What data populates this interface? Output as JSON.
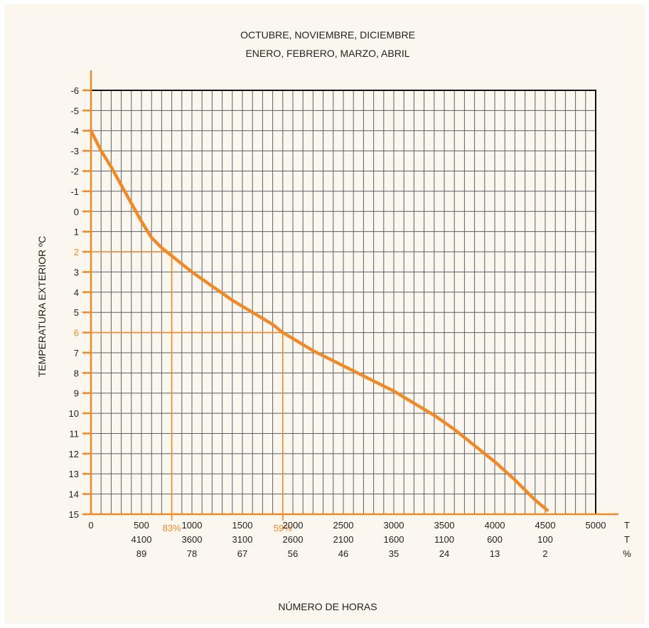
{
  "chart_data": {
    "type": "line",
    "title_line1": "OCTUBRE, NOVIEMBRE, DICIEMBRE",
    "title_line2": "ENERO, FEBRERO, MARZO, ABRIL",
    "xlabel": "NÚMERO DE HORAS",
    "ylabel": "TEMPERATURA EXTERIOR ºC",
    "xlim": [
      0,
      5000
    ],
    "ylim": [
      -6,
      15
    ],
    "y_inverted": true,
    "grid": true,
    "x_ticks": [
      {
        "h": "0",
        "t": "",
        "p": ""
      },
      {
        "h": "500",
        "t": "4100",
        "p": "89"
      },
      {
        "h": "1000",
        "t": "3600",
        "p": "78"
      },
      {
        "h": "1500",
        "t": "3100",
        "p": "67"
      },
      {
        "h": "2000",
        "t": "2600",
        "p": "56"
      },
      {
        "h": "2500",
        "t": "2100",
        "p": "46"
      },
      {
        "h": "3000",
        "t": "1600",
        "p": "35"
      },
      {
        "h": "3500",
        "t": "1100",
        "p": "24"
      },
      {
        "h": "4000",
        "t": "600",
        "p": "13"
      },
      {
        "h": "4500",
        "t": "100",
        "p": "2"
      },
      {
        "h": "5000",
        "t": "",
        "p": ""
      }
    ],
    "x_unit_labels": [
      "T",
      "T",
      "%"
    ],
    "y_ticks": [
      "-6",
      "-5",
      "-4",
      "-3",
      "-2",
      "-1",
      "0",
      "1",
      "2",
      "3",
      "4",
      "5",
      "6",
      "7",
      "8",
      "9",
      "10",
      "11",
      "12",
      "13",
      "14",
      "15"
    ],
    "highlighted_y_ticks": [
      "2",
      "6"
    ],
    "series": [
      {
        "points": [
          [
            0,
            -4
          ],
          [
            100,
            -3
          ],
          [
            200,
            -2.2
          ],
          [
            300,
            -1.3
          ],
          [
            400,
            -0.4
          ],
          [
            500,
            0.5
          ],
          [
            600,
            1.3
          ],
          [
            700,
            1.8
          ],
          [
            800,
            2.2
          ],
          [
            900,
            2.6
          ],
          [
            1000,
            3
          ],
          [
            1200,
            3.7
          ],
          [
            1400,
            4.4
          ],
          [
            1600,
            5
          ],
          [
            1800,
            5.6
          ],
          [
            1900,
            6
          ],
          [
            2000,
            6.3
          ],
          [
            2200,
            6.9
          ],
          [
            2400,
            7.4
          ],
          [
            2600,
            7.9
          ],
          [
            2800,
            8.4
          ],
          [
            3000,
            8.9
          ],
          [
            3200,
            9.5
          ],
          [
            3400,
            10.1
          ],
          [
            3600,
            10.8
          ],
          [
            3800,
            11.6
          ],
          [
            4000,
            12.4
          ],
          [
            4200,
            13.3
          ],
          [
            4400,
            14.3
          ],
          [
            4520,
            14.8
          ]
        ]
      }
    ],
    "annotations": [
      {
        "y": 2,
        "x": 800,
        "label": "83%"
      },
      {
        "y": 6,
        "x": 1900,
        "label": "59%"
      }
    ],
    "colors": {
      "accent": "#f08a28",
      "grid": "#5d6068",
      "panel": "#fbf7ee"
    }
  }
}
